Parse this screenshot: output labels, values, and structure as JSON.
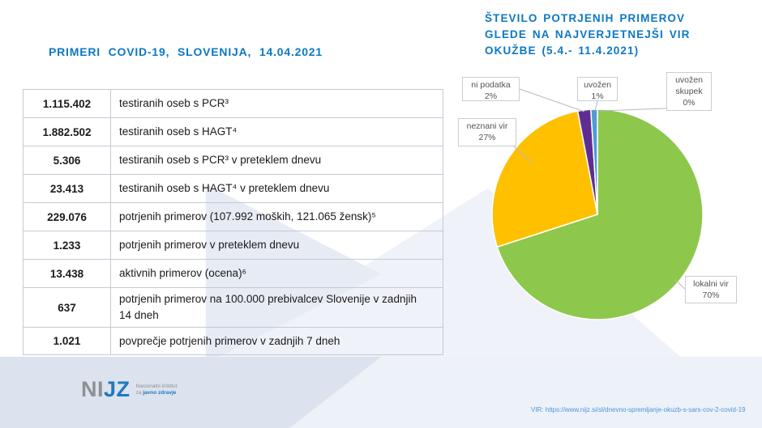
{
  "slide": {
    "left_title": "PRIMERI COVID-19, SLOVENIJA, 14.04.2021",
    "table": {
      "rows": [
        {
          "value": "1.115.402",
          "label": "testiranih oseb s PCR³"
        },
        {
          "value": "1.882.502",
          "label": "testiranih oseb s HAGT⁴"
        },
        {
          "value": "5.306",
          "label": "testiranih oseb s PCR³ v preteklem dnevu"
        },
        {
          "value": "23.413",
          "label": "testiranih oseb s HAGT⁴ v preteklem dnevu"
        },
        {
          "value": "229.076",
          "label": "potrjenih primerov  (107.992 moških,  121.065 žensk)⁵"
        },
        {
          "value": "1.233",
          "label": "potrjenih primerov v preteklem dnevu"
        },
        {
          "value": "13.438",
          "label": "aktivnih primerov (ocena)⁶"
        },
        {
          "value": "637",
          "label": "potrjenih primerov na 100.000 prebivalcev Slovenije  v zadnjih 14 dneh"
        },
        {
          "value": "1.021",
          "label": "povprečje potrjenih  primerov v zadnjih 7 dneh"
        }
      ]
    },
    "footer": {
      "logo_gray": "NI",
      "logo_blue": "JZ",
      "logo_sub_line1": "Nacionalni inštitut",
      "logo_sub_line2_gray": "za ",
      "logo_sub_line2_blue": "javno zdravje",
      "source": "VIR: https://www.nijz.si/sl/dnevno-spremljanje-okuzb-s-sars-cov-2-covid-19"
    }
  },
  "chart_data": {
    "type": "pie",
    "title": "ŠTEVILO POTRJENIH PRIMEROV GLEDE NA NAJVERJETNEJŠI VIR OKUŽBE (5.4.- 11.4.2021)",
    "title_lines": [
      "ŠTEVILO POTRJENIH PRIMEROV",
      "GLEDE NA NAJVERJETNEJŠI VIR",
      "OKUŽBE (5.4.- 11.4.2021)"
    ],
    "start_angle": "12-oclock, clockwise",
    "labels_style": "callout boxes with percentages",
    "slices": [
      {
        "label": "lokalni vir",
        "pct": 70,
        "pct_text": "70%",
        "color": "#8dc84c"
      },
      {
        "label": "neznani vir",
        "pct": 27,
        "pct_text": "27%",
        "color": "#ffc000"
      },
      {
        "label": "ni podatka",
        "pct": 2,
        "pct_text": "2%",
        "color": "#5f2d91"
      },
      {
        "label": "uvožen",
        "pct": 1,
        "pct_text": "1%",
        "color": "#4f9bd5"
      },
      {
        "label": "uvožen skupek",
        "pct": 0,
        "pct_text": "0%",
        "color": "#d9b38c"
      }
    ]
  },
  "colors": {
    "title_blue": "#0c78c4",
    "footer_band": "#dce2ee",
    "table_border": "#c3cad6",
    "callout_border": "#c9cdd3",
    "leader_line": "#b5bac2"
  }
}
